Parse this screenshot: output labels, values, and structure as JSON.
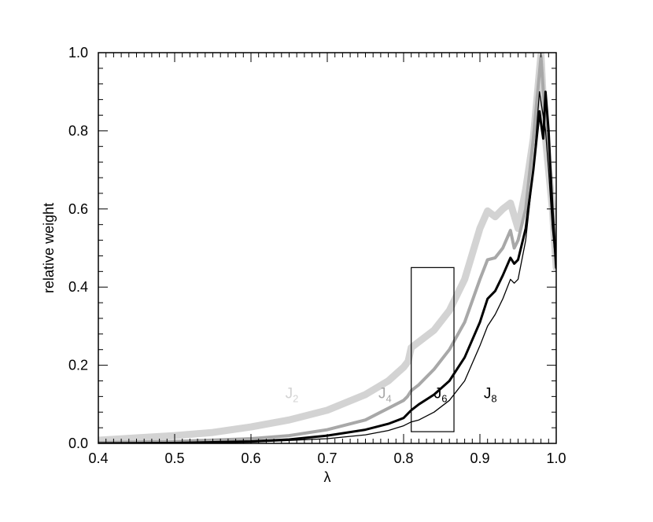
{
  "chart_data": {
    "type": "line",
    "xlabel": "λ",
    "ylabel": "relative weight",
    "xlim": [
      0.4,
      1.0
    ],
    "ylim": [
      0.0,
      1.0
    ],
    "x_ticks": [
      "0.4",
      "0.5",
      "0.6",
      "0.7",
      "0.8",
      "0.9",
      "1.0"
    ],
    "y_ticks": [
      "0.0",
      "0.2",
      "0.4",
      "0.6",
      "0.8",
      "1.0"
    ],
    "grid": false,
    "highlight_box": {
      "x": [
        0.81,
        0.866
      ],
      "y": [
        0.03,
        0.45
      ]
    },
    "series": [
      {
        "name": "J2",
        "label_main": "J",
        "label_sub": "2",
        "color": "#d3d3d3",
        "width": 9,
        "label_at": [
          0.645,
          0.13
        ],
        "points": [
          [
            0.4,
            0.008
          ],
          [
            0.45,
            0.014
          ],
          [
            0.5,
            0.02
          ],
          [
            0.55,
            0.028
          ],
          [
            0.6,
            0.042
          ],
          [
            0.65,
            0.06
          ],
          [
            0.7,
            0.085
          ],
          [
            0.75,
            0.125
          ],
          [
            0.78,
            0.16
          ],
          [
            0.8,
            0.195
          ],
          [
            0.806,
            0.21
          ],
          [
            0.81,
            0.245
          ],
          [
            0.82,
            0.26
          ],
          [
            0.84,
            0.29
          ],
          [
            0.86,
            0.34
          ],
          [
            0.88,
            0.42
          ],
          [
            0.9,
            0.55
          ],
          [
            0.91,
            0.595
          ],
          [
            0.92,
            0.58
          ],
          [
            0.93,
            0.6
          ],
          [
            0.94,
            0.615
          ],
          [
            0.95,
            0.55
          ],
          [
            0.96,
            0.65
          ],
          [
            0.97,
            0.78
          ],
          [
            0.98,
            0.995
          ],
          [
            0.985,
            0.8
          ],
          [
            0.99,
            0.7
          ],
          [
            0.995,
            0.6
          ],
          [
            1.0,
            0.45
          ]
        ]
      },
      {
        "name": "J4",
        "label_main": "J",
        "label_sub": "4",
        "color": "#a8a8a8",
        "width": 4,
        "label_at": [
          0.767,
          0.13
        ],
        "points": [
          [
            0.4,
            0.002
          ],
          [
            0.5,
            0.005
          ],
          [
            0.6,
            0.012
          ],
          [
            0.65,
            0.02
          ],
          [
            0.7,
            0.035
          ],
          [
            0.75,
            0.06
          ],
          [
            0.78,
            0.09
          ],
          [
            0.8,
            0.11
          ],
          [
            0.805,
            0.12
          ],
          [
            0.81,
            0.135
          ],
          [
            0.82,
            0.15
          ],
          [
            0.84,
            0.19
          ],
          [
            0.86,
            0.24
          ],
          [
            0.88,
            0.31
          ],
          [
            0.9,
            0.42
          ],
          [
            0.91,
            0.47
          ],
          [
            0.92,
            0.475
          ],
          [
            0.93,
            0.5
          ],
          [
            0.94,
            0.545
          ],
          [
            0.945,
            0.5
          ],
          [
            0.95,
            0.52
          ],
          [
            0.96,
            0.6
          ],
          [
            0.97,
            0.78
          ],
          [
            0.98,
            0.99
          ],
          [
            0.985,
            0.85
          ],
          [
            0.99,
            0.75
          ],
          [
            0.995,
            0.6
          ],
          [
            1.0,
            0.45
          ]
        ]
      },
      {
        "name": "J6",
        "label_main": "J",
        "label_sub": "6",
        "color": "#000000",
        "width": 3,
        "label_at": [
          0.84,
          0.13
        ],
        "points": [
          [
            0.4,
            0.0
          ],
          [
            0.5,
            0.001
          ],
          [
            0.6,
            0.005
          ],
          [
            0.65,
            0.01
          ],
          [
            0.7,
            0.02
          ],
          [
            0.75,
            0.035
          ],
          [
            0.78,
            0.05
          ],
          [
            0.8,
            0.065
          ],
          [
            0.805,
            0.075
          ],
          [
            0.81,
            0.085
          ],
          [
            0.82,
            0.1
          ],
          [
            0.84,
            0.125
          ],
          [
            0.86,
            0.16
          ],
          [
            0.88,
            0.22
          ],
          [
            0.9,
            0.31
          ],
          [
            0.91,
            0.37
          ],
          [
            0.92,
            0.39
          ],
          [
            0.93,
            0.43
          ],
          [
            0.94,
            0.475
          ],
          [
            0.945,
            0.46
          ],
          [
            0.95,
            0.47
          ],
          [
            0.96,
            0.55
          ],
          [
            0.97,
            0.7
          ],
          [
            0.978,
            0.85
          ],
          [
            0.98,
            0.82
          ],
          [
            0.983,
            0.78
          ],
          [
            0.986,
            0.9
          ],
          [
            0.99,
            0.8
          ],
          [
            0.995,
            0.6
          ],
          [
            1.0,
            0.45
          ]
        ]
      },
      {
        "name": "J8",
        "label_main": "J",
        "label_sub": "8",
        "color": "#000000",
        "width": 1.3,
        "label_at": [
          0.905,
          0.13
        ],
        "points": [
          [
            0.4,
            0.0
          ],
          [
            0.6,
            0.003
          ],
          [
            0.7,
            0.012
          ],
          [
            0.75,
            0.022
          ],
          [
            0.78,
            0.033
          ],
          [
            0.8,
            0.045
          ],
          [
            0.81,
            0.055
          ],
          [
            0.82,
            0.06
          ],
          [
            0.84,
            0.08
          ],
          [
            0.86,
            0.11
          ],
          [
            0.88,
            0.16
          ],
          [
            0.9,
            0.25
          ],
          [
            0.91,
            0.3
          ],
          [
            0.92,
            0.33
          ],
          [
            0.93,
            0.37
          ],
          [
            0.94,
            0.42
          ],
          [
            0.945,
            0.41
          ],
          [
            0.95,
            0.42
          ],
          [
            0.96,
            0.52
          ],
          [
            0.97,
            0.7
          ],
          [
            0.978,
            0.9
          ],
          [
            0.982,
            0.85
          ],
          [
            0.986,
            0.8
          ],
          [
            0.99,
            0.7
          ],
          [
            0.995,
            0.55
          ],
          [
            1.0,
            0.45
          ]
        ]
      }
    ]
  }
}
